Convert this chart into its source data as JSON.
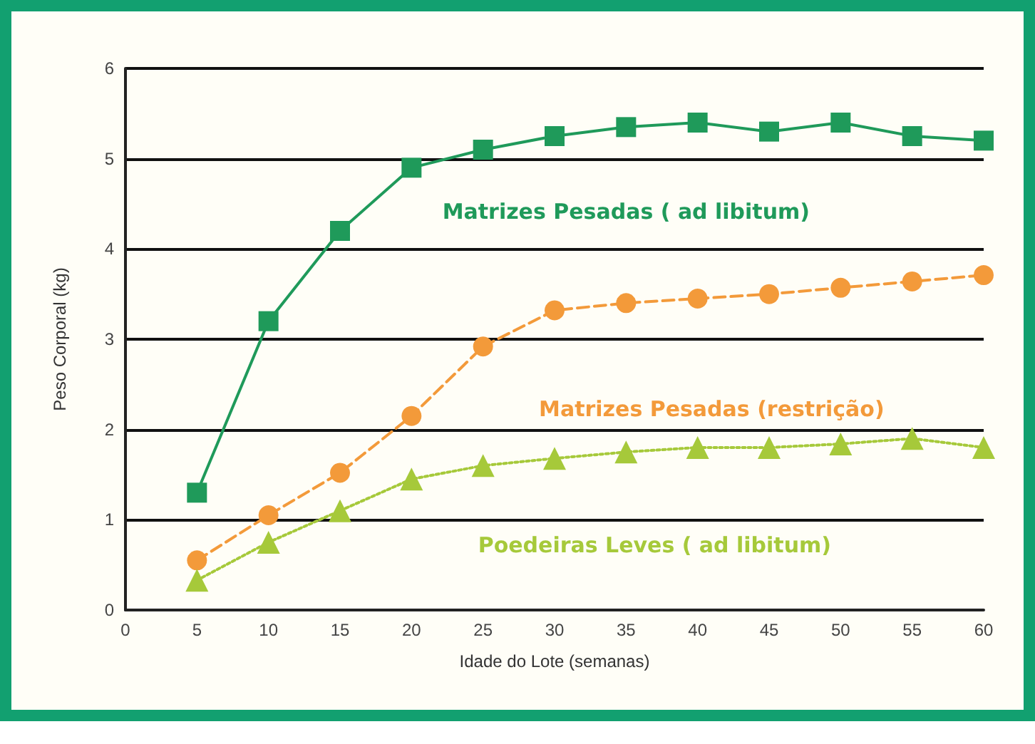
{
  "chart_data": {
    "type": "line",
    "xlabel": "Idade do Lote (semanas)",
    "ylabel": "Peso Corporal (kg)",
    "x": [
      5,
      10,
      15,
      20,
      25,
      30,
      35,
      40,
      45,
      50,
      55,
      60
    ],
    "xlim": [
      0,
      60
    ],
    "xticks": [
      0,
      5,
      10,
      15,
      20,
      25,
      30,
      35,
      40,
      45,
      50,
      55,
      60
    ],
    "ylim": [
      0,
      6
    ],
    "yticks": [
      0,
      1,
      2,
      3,
      4,
      5,
      6
    ],
    "grid": "y",
    "legend": false,
    "series": [
      {
        "name": "Matrizes Pesadas ( ad libitum)",
        "color": "#1f9a5a",
        "marker": "square",
        "line_style": "solid",
        "values": [
          1.3,
          3.2,
          4.2,
          4.9,
          5.1,
          5.25,
          5.35,
          5.4,
          5.3,
          5.4,
          5.25,
          5.2
        ]
      },
      {
        "name": "Matrizes Pesadas (restrição)",
        "color": "#f39a3a",
        "marker": "circle",
        "line_style": "dashed",
        "values": [
          0.55,
          1.05,
          1.52,
          2.15,
          2.92,
          3.32,
          3.4,
          3.45,
          3.5,
          3.57,
          3.64,
          3.71
        ]
      },
      {
        "name": "Poedeiras Leves ( ad libitum)",
        "color": "#a6c93a",
        "marker": "triangle",
        "line_style": "dotted",
        "values": [
          0.33,
          0.75,
          1.1,
          1.45,
          1.6,
          1.68,
          1.75,
          1.8,
          1.8,
          1.84,
          1.9,
          1.8
        ]
      }
    ]
  }
}
